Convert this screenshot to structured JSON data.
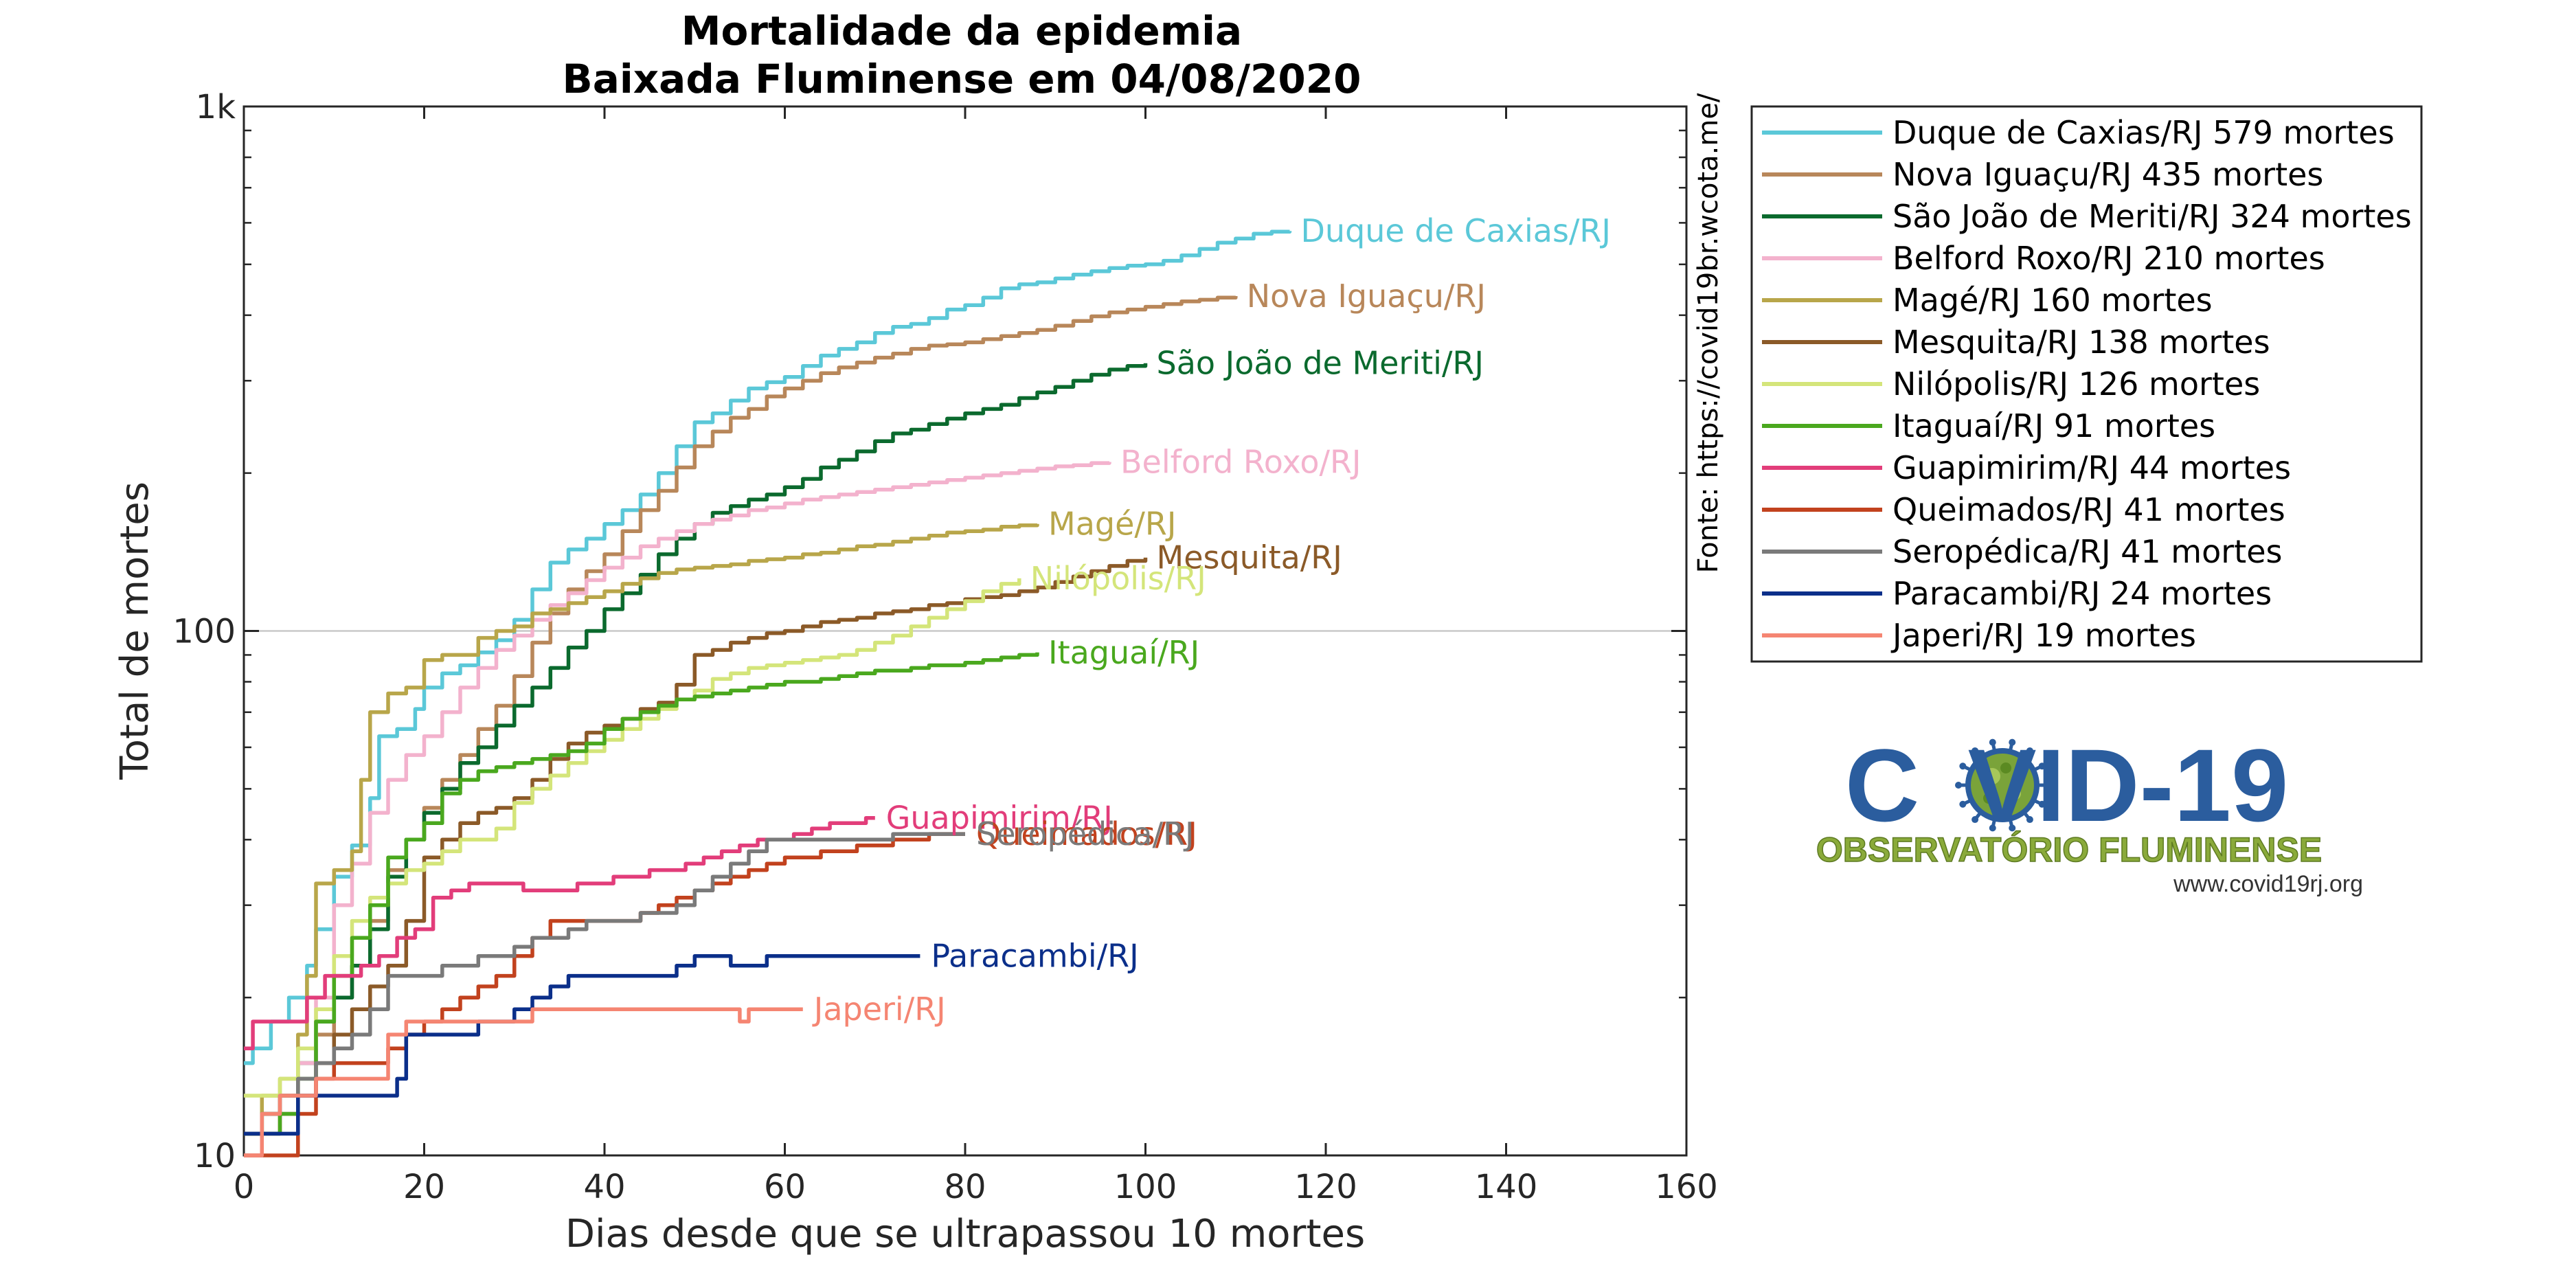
{
  "chart_data": {
    "type": "line",
    "title": "Mortalidade da epidemia",
    "subtitle": "Baixada Fluminense em 04/08/2020",
    "xlabel": "Dias desde que se ultrapassou 10 mortes",
    "ylabel": "Total de mortes",
    "x_scale": "linear",
    "y_scale": "log",
    "xlim": [
      0,
      160
    ],
    "ylim": [
      10,
      1000
    ],
    "x_ticks": [
      "0",
      "20",
      "40",
      "60",
      "80",
      "100",
      "120",
      "140",
      "160"
    ],
    "y_ticks": [
      "10",
      "100",
      "1k"
    ],
    "grid": "major horizontal line at 100",
    "legend_position": "right, outside plot",
    "source_note": "Fonte: https://covid19br.wcota.me/",
    "series": [
      {
        "name": "Duque de Caxias/RJ",
        "legend": "Duque de Caxias/RJ  579 mortes",
        "color": "#5bc8d8",
        "x": [
          0,
          1,
          3,
          5,
          7,
          8,
          10,
          12,
          14,
          15,
          17,
          19,
          20,
          22,
          24,
          26,
          28,
          30,
          32,
          34,
          36,
          38,
          40,
          42,
          44,
          46,
          48,
          50,
          52,
          54,
          56,
          58,
          60,
          62,
          64,
          66,
          68,
          70,
          72,
          74,
          76,
          78,
          80,
          82,
          84,
          86,
          88,
          90,
          92,
          94,
          96,
          98,
          100,
          102,
          104,
          106,
          108,
          110,
          112,
          114,
          116
        ],
        "y": [
          15,
          16,
          18,
          20,
          23,
          27,
          34,
          39,
          48,
          63,
          65,
          71,
          78,
          83,
          86,
          91,
          96,
          105,
          120,
          135,
          143,
          150,
          160,
          170,
          182,
          200,
          225,
          250,
          260,
          275,
          290,
          298,
          305,
          320,
          335,
          345,
          355,
          370,
          380,
          385,
          395,
          410,
          418,
          432,
          450,
          458,
          462,
          470,
          478,
          485,
          492,
          497,
          500,
          508,
          520,
          535,
          550,
          560,
          572,
          577,
          579
        ]
      },
      {
        "name": "Nova Iguaçu/RJ",
        "legend": "Nova Iguaçu/RJ  435 mortes",
        "color": "#b8875a",
        "x": [
          0,
          2,
          4,
          6,
          8,
          10,
          12,
          14,
          16,
          18,
          20,
          22,
          24,
          26,
          28,
          30,
          32,
          34,
          36,
          38,
          40,
          42,
          44,
          46,
          48,
          50,
          52,
          54,
          56,
          58,
          60,
          62,
          64,
          66,
          68,
          70,
          72,
          74,
          76,
          78,
          80,
          82,
          84,
          86,
          88,
          90,
          92,
          94,
          96,
          98,
          100,
          102,
          104,
          106,
          108,
          110
        ],
        "y": [
          11,
          12,
          13,
          15,
          17,
          20,
          23,
          28,
          35,
          40,
          46,
          52,
          58,
          65,
          72,
          82,
          95,
          108,
          120,
          130,
          140,
          155,
          170,
          185,
          205,
          225,
          240,
          255,
          265,
          280,
          290,
          300,
          310,
          318,
          325,
          332,
          338,
          345,
          350,
          352,
          355,
          360,
          365,
          370,
          375,
          382,
          390,
          398,
          405,
          410,
          415,
          420,
          425,
          428,
          432,
          435
        ]
      },
      {
        "name": "São João de Meriti/RJ",
        "legend": "São João de Meriti/RJ  324 mortes",
        "color": "#0b6a2e",
        "x": [
          0,
          2,
          4,
          6,
          8,
          10,
          12,
          14,
          16,
          18,
          20,
          22,
          24,
          26,
          28,
          30,
          32,
          34,
          36,
          38,
          40,
          42,
          44,
          46,
          48,
          50,
          52,
          54,
          56,
          58,
          60,
          62,
          64,
          66,
          68,
          70,
          72,
          74,
          76,
          78,
          80,
          82,
          84,
          86,
          88,
          90,
          92,
          94,
          96,
          98,
          100
        ],
        "y": [
          11,
          12,
          13,
          15,
          18,
          20,
          23,
          27,
          34,
          40,
          45,
          50,
          56,
          60,
          66,
          72,
          78,
          85,
          93,
          100,
          110,
          118,
          128,
          140,
          150,
          160,
          168,
          173,
          178,
          182,
          188,
          195,
          205,
          212,
          220,
          230,
          238,
          242,
          248,
          254,
          260,
          265,
          270,
          278,
          285,
          292,
          300,
          308,
          315,
          320,
          324
        ]
      },
      {
        "name": "Belford Roxo/RJ",
        "legend": "Belford Roxo/RJ  210 mortes",
        "color": "#f3b2cd",
        "x": [
          0,
          2,
          4,
          6,
          8,
          10,
          12,
          14,
          16,
          18,
          20,
          22,
          24,
          26,
          28,
          30,
          32,
          34,
          36,
          38,
          40,
          42,
          44,
          46,
          48,
          50,
          52,
          54,
          56,
          58,
          60,
          62,
          64,
          66,
          68,
          70,
          72,
          74,
          76,
          78,
          80,
          82,
          84,
          86,
          88,
          90,
          92,
          94,
          96
        ],
        "y": [
          10,
          11,
          13,
          15,
          20,
          30,
          36,
          45,
          52,
          58,
          63,
          70,
          78,
          85,
          92,
          98,
          105,
          112,
          118,
          125,
          132,
          138,
          145,
          150,
          155,
          160,
          163,
          166,
          170,
          172,
          175,
          178,
          180,
          182,
          184,
          186,
          188,
          190,
          192,
          194,
          196,
          198,
          200,
          202,
          204,
          206,
          207,
          209,
          210
        ]
      },
      {
        "name": "Magé/RJ",
        "legend": "Magé/RJ  160 mortes",
        "color": "#b8a64a",
        "x": [
          0,
          2,
          4,
          6,
          7,
          8,
          10,
          12,
          13,
          14,
          16,
          18,
          20,
          22,
          24,
          26,
          28,
          30,
          32,
          34,
          36,
          38,
          40,
          42,
          44,
          46,
          48,
          50,
          52,
          54,
          56,
          58,
          60,
          62,
          64,
          66,
          68,
          70,
          72,
          74,
          76,
          78,
          80,
          82,
          84,
          86,
          88
        ],
        "y": [
          11,
          13,
          14,
          17,
          22,
          33,
          35,
          38,
          52,
          70,
          76,
          78,
          88,
          90,
          90,
          97,
          100,
          102,
          108,
          110,
          113,
          116,
          119,
          123,
          126,
          129,
          131,
          132,
          133,
          134,
          136,
          137,
          138,
          140,
          141,
          143,
          145,
          146,
          148,
          150,
          152,
          154,
          155,
          156,
          158,
          159,
          160
        ]
      },
      {
        "name": "Mesquita/RJ",
        "legend": "Mesquita/RJ  138 mortes",
        "color": "#8b5a28",
        "x": [
          0,
          2,
          4,
          6,
          8,
          10,
          12,
          14,
          16,
          18,
          20,
          22,
          24,
          26,
          28,
          30,
          32,
          34,
          36,
          38,
          40,
          42,
          44,
          46,
          48,
          50,
          52,
          54,
          56,
          58,
          60,
          62,
          64,
          66,
          68,
          70,
          72,
          74,
          76,
          78,
          80,
          82,
          84,
          86,
          88,
          90,
          92,
          94,
          96,
          98,
          100
        ],
        "y": [
          11,
          11,
          12,
          13,
          15,
          17,
          19,
          21,
          23,
          28,
          37,
          40,
          43,
          45,
          46,
          48,
          52,
          57,
          61,
          64,
          66,
          68,
          71,
          73,
          79,
          90,
          92,
          95,
          97,
          99,
          100,
          102,
          104,
          105,
          106,
          108,
          109,
          110,
          112,
          113,
          115,
          116,
          117,
          119,
          121,
          124,
          127,
          130,
          133,
          136,
          138
        ]
      },
      {
        "name": "Nilópolis/RJ",
        "legend": "Nilópolis/RJ  126 mortes",
        "color": "#d4e57a",
        "x": [
          0,
          2,
          4,
          6,
          8,
          10,
          12,
          14,
          16,
          18,
          20,
          22,
          24,
          26,
          28,
          30,
          32,
          34,
          36,
          38,
          40,
          42,
          44,
          46,
          48,
          50,
          52,
          54,
          56,
          58,
          60,
          62,
          64,
          66,
          68,
          70,
          72,
          74,
          76,
          78,
          80,
          82,
          84,
          86
        ],
        "y": [
          13,
          13,
          14,
          16,
          19,
          24,
          28,
          31,
          33,
          35,
          36,
          38,
          40,
          40,
          42,
          47,
          50,
          53,
          56,
          59,
          62,
          65,
          68,
          71,
          74,
          77,
          81,
          83,
          85,
          86,
          87,
          88,
          89,
          90,
          92,
          95,
          98,
          102,
          106,
          110,
          114,
          119,
          123,
          126
        ]
      },
      {
        "name": "Itaguaí/RJ",
        "legend": "Itaguaí/RJ  91 mortes",
        "color": "#4aa81e",
        "x": [
          0,
          2,
          4,
          6,
          8,
          10,
          12,
          14,
          16,
          18,
          20,
          22,
          24,
          26,
          28,
          30,
          32,
          34,
          36,
          38,
          40,
          42,
          44,
          46,
          48,
          50,
          52,
          54,
          56,
          58,
          60,
          62,
          64,
          66,
          68,
          70,
          72,
          74,
          76,
          78,
          80,
          82,
          84,
          86,
          88
        ],
        "y": [
          11,
          11,
          12,
          14,
          18,
          22,
          26,
          30,
          37,
          40,
          43,
          49,
          52,
          54,
          55,
          56,
          57,
          58,
          59,
          61,
          65,
          68,
          70,
          72,
          74,
          75,
          76,
          77,
          78,
          79,
          80,
          80,
          81,
          82,
          83,
          84,
          84,
          85,
          86,
          86,
          87,
          88,
          89,
          90,
          91
        ]
      },
      {
        "name": "Guapimirim/RJ",
        "legend": "Guapimirim/RJ  44 mortes",
        "color": "#e23d7a",
        "x": [
          0,
          1,
          3,
          5,
          7,
          9,
          11,
          13,
          15,
          17,
          19,
          21,
          23,
          25,
          27,
          29,
          31,
          33,
          35,
          37,
          39,
          41,
          43,
          45,
          47,
          49,
          51,
          53,
          55,
          57,
          59,
          61,
          63,
          65,
          67,
          69,
          70
        ],
        "y": [
          16,
          18,
          18,
          18,
          20,
          22,
          22,
          23,
          24,
          26,
          27,
          31,
          32,
          33,
          33,
          33,
          32,
          32,
          32,
          33,
          33,
          34,
          34,
          35,
          35,
          36,
          37,
          38,
          39,
          40,
          40,
          41,
          42,
          43,
          43,
          44,
          44
        ]
      },
      {
        "name": "Queimados/RJ",
        "legend": "Queimados/RJ  41 mortes",
        "color": "#c2421e",
        "x": [
          0,
          2,
          4,
          6,
          8,
          10,
          12,
          14,
          16,
          18,
          20,
          22,
          24,
          26,
          28,
          30,
          32,
          34,
          36,
          38,
          40,
          42,
          44,
          46,
          48,
          50,
          52,
          54,
          56,
          58,
          60,
          62,
          64,
          66,
          68,
          70,
          72,
          74,
          76,
          78,
          80
        ],
        "y": [
          10,
          10,
          10,
          12,
          14,
          15,
          15,
          15,
          16,
          17,
          18,
          19,
          20,
          21,
          22,
          24,
          26,
          28,
          28,
          28,
          28,
          28,
          29,
          30,
          31,
          32,
          33,
          34,
          35,
          36,
          37,
          37,
          38,
          38,
          39,
          39,
          40,
          40,
          41,
          41,
          41
        ]
      },
      {
        "name": "Seropédica/RJ",
        "legend": "Seropédica/RJ  41 mortes",
        "color": "#7a7a7a",
        "x": [
          0,
          2,
          4,
          6,
          8,
          10,
          12,
          14,
          16,
          18,
          20,
          22,
          24,
          26,
          28,
          30,
          32,
          34,
          36,
          38,
          40,
          42,
          44,
          46,
          48,
          50,
          52,
          54,
          56,
          58,
          60,
          62,
          64,
          66,
          68,
          70,
          72,
          74,
          76,
          78,
          80
        ],
        "y": [
          11,
          12,
          13,
          14,
          15,
          16,
          17,
          19,
          22,
          22,
          22,
          23,
          23,
          24,
          24,
          25,
          26,
          26,
          27,
          28,
          28,
          28,
          29,
          29,
          30,
          32,
          34,
          36,
          38,
          40,
          40,
          40,
          40,
          40,
          40,
          40,
          41,
          41,
          41,
          41,
          41
        ]
      },
      {
        "name": "Paracambi/RJ",
        "legend": "Paracambi/RJ  24 mortes",
        "color": "#0b2f8a",
        "x": [
          0,
          2,
          4,
          6,
          8,
          10,
          12,
          14,
          16,
          17,
          18,
          20,
          22,
          24,
          26,
          28,
          30,
          32,
          34,
          36,
          38,
          40,
          42,
          44,
          46,
          48,
          50,
          52,
          54,
          56,
          58,
          60,
          62,
          64,
          66,
          68,
          70,
          72,
          74,
          75
        ],
        "y": [
          11,
          11,
          11,
          13,
          13,
          13,
          13,
          13,
          13,
          14,
          17,
          17,
          17,
          17,
          18,
          18,
          19,
          20,
          21,
          22,
          22,
          22,
          22,
          22,
          22,
          23,
          24,
          24,
          23,
          23,
          24,
          24,
          24,
          24,
          24,
          24,
          24,
          24,
          24,
          24
        ]
      },
      {
        "name": "Japeri/RJ",
        "legend": "Japeri/RJ  19 mortes",
        "color": "#f58572",
        "x": [
          0,
          2,
          4,
          6,
          8,
          10,
          12,
          14,
          16,
          18,
          20,
          22,
          24,
          26,
          28,
          30,
          32,
          34,
          36,
          38,
          40,
          42,
          44,
          46,
          48,
          50,
          52,
          54,
          55,
          56,
          58,
          60,
          62
        ],
        "y": [
          10,
          12,
          13,
          13,
          14,
          14,
          14,
          14,
          17,
          18,
          18,
          18,
          18,
          18,
          18,
          18,
          19,
          19,
          19,
          19,
          19,
          19,
          19,
          19,
          19,
          19,
          19,
          19,
          18,
          19,
          19,
          19,
          19
        ]
      }
    ]
  },
  "logo": {
    "word_left": "C",
    "word_right": "VID-19",
    "subtitle": "OBSERVATÓRIO FLUMINENSE",
    "url": "www.covid19rj.org"
  }
}
